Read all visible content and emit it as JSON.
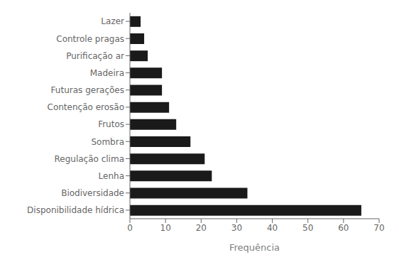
{
  "chart_data": {
    "type": "bar",
    "orientation": "horizontal",
    "categories": [
      "Disponibilidade hídrica",
      "Biodiversidade",
      "Lenha",
      "Regulação clima",
      "Sombra",
      "Frutos",
      "Contenção erosão",
      "Futuras gerações",
      "Madeira",
      "Purificação ar",
      "Controle pragas",
      "Lazer"
    ],
    "values": [
      65,
      33,
      23,
      21,
      17,
      13,
      11,
      9,
      9,
      5,
      4,
      3
    ],
    "color": "#1a1a1a",
    "xlabel": "Frequência",
    "xlim": [
      0,
      70
    ],
    "xticks": [
      0,
      10,
      20,
      30,
      40,
      50,
      60,
      70
    ],
    "grid": false
  }
}
